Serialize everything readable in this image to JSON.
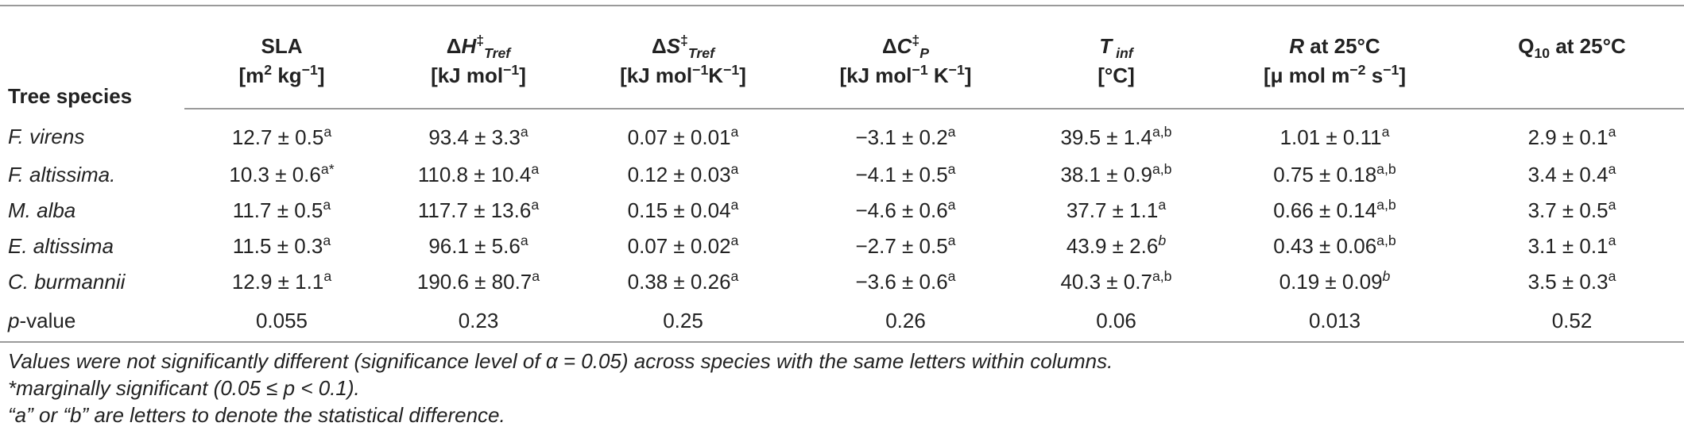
{
  "headers": {
    "species": "Tree species",
    "sla": {
      "name": "SLA",
      "unit_a": "[m",
      "unit_sup": "2",
      "unit_b": " kg",
      "unit_sup2": "−1",
      "unit_c": "]"
    },
    "dh": {
      "delta": "Δ",
      "sym": "H",
      "sup": "‡",
      "sub": "Tref",
      "unit_a": "[kJ mol",
      "unit_sup": "−1",
      "unit_c": "]"
    },
    "ds": {
      "delta": "Δ",
      "sym": "S",
      "sup": "‡",
      "sub": "Tref",
      "unit_a": "[kJ mol",
      "unit_sup": "−1",
      "unit_b": "K",
      "unit_sup2": "−1",
      "unit_c": "]"
    },
    "dc": {
      "delta": "Δ",
      "sym": "C",
      "sup": "‡",
      "sub": "P",
      "unit_a": "[kJ mol",
      "unit_sup": "−1",
      "unit_b": " K",
      "unit_sup2": "−1",
      "unit_c": "]"
    },
    "tinf": {
      "sym": "T",
      "sub": " inf",
      "unit": "[°C]"
    },
    "r": {
      "sym": "R",
      "rest": " at 25°C",
      "unit_a": "[μ mol m",
      "unit_sup": "−2",
      "unit_b": " s",
      "unit_sup2": "−1",
      "unit_c": "]"
    },
    "q10": {
      "a": "Q",
      "sub": "10",
      "rest": " at 25°C"
    }
  },
  "rows": [
    {
      "species": "F. virens",
      "sla": "12.7 ± 0.5",
      "sla_s": "a",
      "dh": "93.4 ± 3.3",
      "dh_s": "a",
      "ds": "0.07 ± 0.01",
      "ds_s": "a",
      "dc": "−3.1 ± 0.2",
      "dc_s": "a",
      "tinf": "39.5 ± 1.4",
      "tinf_s": "a,b",
      "r": "1.01 ± 0.11",
      "r_s": "a",
      "q10": "2.9 ± 0.1",
      "q10_s": "a"
    },
    {
      "species": "F. altissima.",
      "sla": "10.3 ± 0.6",
      "sla_s": "a*",
      "dh": "110.8 ± 10.4",
      "dh_s": "a",
      "ds": "0.12 ± 0.03",
      "ds_s": "a",
      "dc": "−4.1 ± 0.5",
      "dc_s": "a",
      "tinf": "38.1 ± 0.9",
      "tinf_s": "a,b",
      "r": "0.75 ± 0.18",
      "r_s": "a,b",
      "q10": "3.4 ± 0.4",
      "q10_s": "a"
    },
    {
      "species": "M. alba",
      "sla": "11.7 ± 0.5",
      "sla_s": "a",
      "dh": "117.7 ± 13.6",
      "dh_s": "a",
      "ds": "0.15 ± 0.04",
      "ds_s": "a",
      "dc": "−4.6 ± 0.6",
      "dc_s": "a",
      "tinf": "37.7 ± 1.1",
      "tinf_s": "a",
      "r": "0.66 ± 0.14",
      "r_s": "a,b",
      "q10": "3.7 ± 0.5",
      "q10_s": "a"
    },
    {
      "species": "E. altissima",
      "sla": "11.5 ± 0.3",
      "sla_s": "a",
      "dh": "96.1 ± 5.6",
      "dh_s": "a",
      "ds": "0.07 ± 0.02",
      "ds_s": "a",
      "dc": "−2.7 ± 0.5",
      "dc_s": "a",
      "tinf": "43.9 ± 2.6",
      "tinf_s": "b",
      "r": "0.43 ± 0.06",
      "r_s": "a,b",
      "q10": "3.1 ± 0.1",
      "q10_s": "a"
    },
    {
      "species": "C. burmannii",
      "sla": "12.9 ± 1.1",
      "sla_s": "a",
      "dh": "190.6 ± 80.7",
      "dh_s": "a",
      "ds": "0.38 ± 0.26",
      "ds_s": "a",
      "dc": "−3.6 ± 0.6",
      "dc_s": "a",
      "tinf": "40.3 ± 0.7",
      "tinf_s": "a,b",
      "r": "0.19 ± 0.09",
      "r_s": "b",
      "q10": "3.5 ± 0.3",
      "q10_s": "a"
    }
  ],
  "pvalue_row": {
    "label_italic": "p",
    "label_rest": "-value",
    "sla": "0.055",
    "dh": "0.23",
    "ds": "0.25",
    "dc": "0.26",
    "tinf": "0.06",
    "r": "0.013",
    "q10": "0.52"
  },
  "notes": [
    "Values were not significantly different (significance level of α = 0.05) across species with the same letters within columns.",
    "*marginally significant (0.05 ≤ p < 0.1).",
    "“a” or “b” are letters to denote the statistical difference."
  ]
}
